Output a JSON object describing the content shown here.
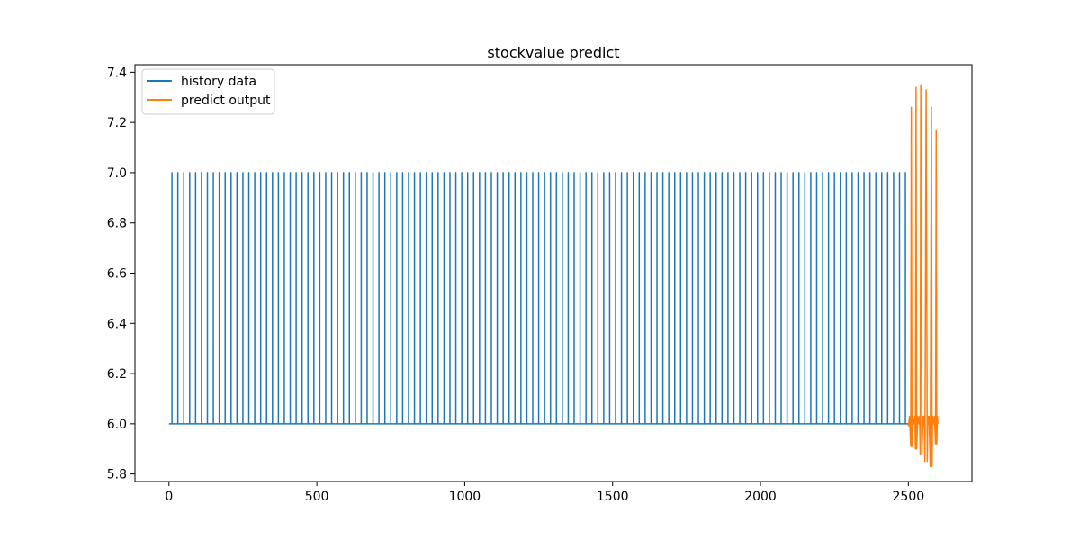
{
  "chart_data": {
    "type": "line",
    "title": "stockvalue predict",
    "xlabel": "",
    "ylabel": "",
    "xlim": [
      -115,
      2715
    ],
    "ylim": [
      5.77,
      7.43
    ],
    "x_ticks": [
      0,
      500,
      1000,
      1500,
      2000,
      2500
    ],
    "y_ticks": [
      5.8,
      6.0,
      6.2,
      6.4,
      6.6,
      6.8,
      7.0,
      7.2,
      7.4
    ],
    "x_tick_labels": [
      "0",
      "500",
      "1000",
      "1500",
      "2000",
      "2500"
    ],
    "y_tick_labels": [
      "5.8",
      "6.0",
      "6.2",
      "6.4",
      "6.6",
      "6.8",
      "7.0",
      "7.2",
      "7.4"
    ],
    "grid": false,
    "legend_position": "top-left",
    "series": [
      {
        "name": "history data",
        "color": "#1f77b4",
        "pattern": {
          "x_start": 0,
          "x_end": 2500,
          "period": 20,
          "spike_offset": 10,
          "base": 6.0,
          "peak": 7.0
        }
      },
      {
        "name": "predict output",
        "color": "#ff7f0e",
        "x": [
          2500,
          2504,
          2508,
          2510,
          2512,
          2514,
          2518,
          2522,
          2524,
          2526,
          2528,
          2532,
          2536,
          2538,
          2540,
          2542,
          2546,
          2550,
          2552,
          2554,
          2556,
          2560,
          2564,
          2566,
          2568,
          2570,
          2574,
          2578,
          2580,
          2582,
          2584,
          2588,
          2592,
          2594,
          2596,
          2598,
          2600
        ],
        "y": [
          5.99,
          6.03,
          5.91,
          7.26,
          5.91,
          6.03,
          6.0,
          6.03,
          5.9,
          7.34,
          5.9,
          6.03,
          6.0,
          6.03,
          5.88,
          7.35,
          5.88,
          6.03,
          6.0,
          6.03,
          5.85,
          7.33,
          5.85,
          6.03,
          6.0,
          6.03,
          5.83,
          7.26,
          5.83,
          6.03,
          6.0,
          6.03,
          5.92,
          7.17,
          5.92,
          6.03,
          6.0
        ]
      }
    ]
  }
}
